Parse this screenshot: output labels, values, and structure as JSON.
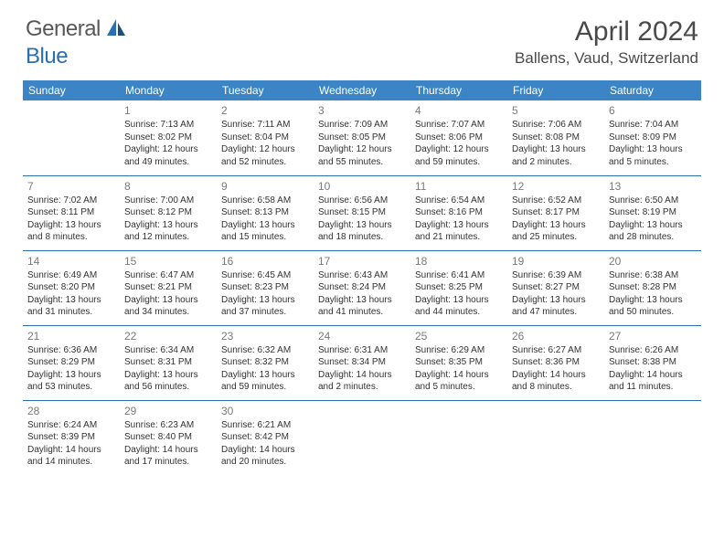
{
  "logo": {
    "part1": "General",
    "part2": "Blue"
  },
  "title": "April 2024",
  "location": "Ballens, Vaud, Switzerland",
  "dayHeaders": [
    "Sunday",
    "Monday",
    "Tuesday",
    "Wednesday",
    "Thursday",
    "Friday",
    "Saturday"
  ],
  "colors": {
    "headerBg": "#3b85c6",
    "headerText": "#ffffff",
    "border": "#2b6fb0",
    "text": "#333333",
    "dayNum": "#7a7a7a",
    "logoGray": "#585858",
    "logoBlue": "#2b6fb0"
  },
  "weeks": [
    [
      null,
      {
        "n": "1",
        "sr": "Sunrise: 7:13 AM",
        "ss": "Sunset: 8:02 PM",
        "d1": "Daylight: 12 hours",
        "d2": "and 49 minutes."
      },
      {
        "n": "2",
        "sr": "Sunrise: 7:11 AM",
        "ss": "Sunset: 8:04 PM",
        "d1": "Daylight: 12 hours",
        "d2": "and 52 minutes."
      },
      {
        "n": "3",
        "sr": "Sunrise: 7:09 AM",
        "ss": "Sunset: 8:05 PM",
        "d1": "Daylight: 12 hours",
        "d2": "and 55 minutes."
      },
      {
        "n": "4",
        "sr": "Sunrise: 7:07 AM",
        "ss": "Sunset: 8:06 PM",
        "d1": "Daylight: 12 hours",
        "d2": "and 59 minutes."
      },
      {
        "n": "5",
        "sr": "Sunrise: 7:06 AM",
        "ss": "Sunset: 8:08 PM",
        "d1": "Daylight: 13 hours",
        "d2": "and 2 minutes."
      },
      {
        "n": "6",
        "sr": "Sunrise: 7:04 AM",
        "ss": "Sunset: 8:09 PM",
        "d1": "Daylight: 13 hours",
        "d2": "and 5 minutes."
      }
    ],
    [
      {
        "n": "7",
        "sr": "Sunrise: 7:02 AM",
        "ss": "Sunset: 8:11 PM",
        "d1": "Daylight: 13 hours",
        "d2": "and 8 minutes."
      },
      {
        "n": "8",
        "sr": "Sunrise: 7:00 AM",
        "ss": "Sunset: 8:12 PM",
        "d1": "Daylight: 13 hours",
        "d2": "and 12 minutes."
      },
      {
        "n": "9",
        "sr": "Sunrise: 6:58 AM",
        "ss": "Sunset: 8:13 PM",
        "d1": "Daylight: 13 hours",
        "d2": "and 15 minutes."
      },
      {
        "n": "10",
        "sr": "Sunrise: 6:56 AM",
        "ss": "Sunset: 8:15 PM",
        "d1": "Daylight: 13 hours",
        "d2": "and 18 minutes."
      },
      {
        "n": "11",
        "sr": "Sunrise: 6:54 AM",
        "ss": "Sunset: 8:16 PM",
        "d1": "Daylight: 13 hours",
        "d2": "and 21 minutes."
      },
      {
        "n": "12",
        "sr": "Sunrise: 6:52 AM",
        "ss": "Sunset: 8:17 PM",
        "d1": "Daylight: 13 hours",
        "d2": "and 25 minutes."
      },
      {
        "n": "13",
        "sr": "Sunrise: 6:50 AM",
        "ss": "Sunset: 8:19 PM",
        "d1": "Daylight: 13 hours",
        "d2": "and 28 minutes."
      }
    ],
    [
      {
        "n": "14",
        "sr": "Sunrise: 6:49 AM",
        "ss": "Sunset: 8:20 PM",
        "d1": "Daylight: 13 hours",
        "d2": "and 31 minutes."
      },
      {
        "n": "15",
        "sr": "Sunrise: 6:47 AM",
        "ss": "Sunset: 8:21 PM",
        "d1": "Daylight: 13 hours",
        "d2": "and 34 minutes."
      },
      {
        "n": "16",
        "sr": "Sunrise: 6:45 AM",
        "ss": "Sunset: 8:23 PM",
        "d1": "Daylight: 13 hours",
        "d2": "and 37 minutes."
      },
      {
        "n": "17",
        "sr": "Sunrise: 6:43 AM",
        "ss": "Sunset: 8:24 PM",
        "d1": "Daylight: 13 hours",
        "d2": "and 41 minutes."
      },
      {
        "n": "18",
        "sr": "Sunrise: 6:41 AM",
        "ss": "Sunset: 8:25 PM",
        "d1": "Daylight: 13 hours",
        "d2": "and 44 minutes."
      },
      {
        "n": "19",
        "sr": "Sunrise: 6:39 AM",
        "ss": "Sunset: 8:27 PM",
        "d1": "Daylight: 13 hours",
        "d2": "and 47 minutes."
      },
      {
        "n": "20",
        "sr": "Sunrise: 6:38 AM",
        "ss": "Sunset: 8:28 PM",
        "d1": "Daylight: 13 hours",
        "d2": "and 50 minutes."
      }
    ],
    [
      {
        "n": "21",
        "sr": "Sunrise: 6:36 AM",
        "ss": "Sunset: 8:29 PM",
        "d1": "Daylight: 13 hours",
        "d2": "and 53 minutes."
      },
      {
        "n": "22",
        "sr": "Sunrise: 6:34 AM",
        "ss": "Sunset: 8:31 PM",
        "d1": "Daylight: 13 hours",
        "d2": "and 56 minutes."
      },
      {
        "n": "23",
        "sr": "Sunrise: 6:32 AM",
        "ss": "Sunset: 8:32 PM",
        "d1": "Daylight: 13 hours",
        "d2": "and 59 minutes."
      },
      {
        "n": "24",
        "sr": "Sunrise: 6:31 AM",
        "ss": "Sunset: 8:34 PM",
        "d1": "Daylight: 14 hours",
        "d2": "and 2 minutes."
      },
      {
        "n": "25",
        "sr": "Sunrise: 6:29 AM",
        "ss": "Sunset: 8:35 PM",
        "d1": "Daylight: 14 hours",
        "d2": "and 5 minutes."
      },
      {
        "n": "26",
        "sr": "Sunrise: 6:27 AM",
        "ss": "Sunset: 8:36 PM",
        "d1": "Daylight: 14 hours",
        "d2": "and 8 minutes."
      },
      {
        "n": "27",
        "sr": "Sunrise: 6:26 AM",
        "ss": "Sunset: 8:38 PM",
        "d1": "Daylight: 14 hours",
        "d2": "and 11 minutes."
      }
    ],
    [
      {
        "n": "28",
        "sr": "Sunrise: 6:24 AM",
        "ss": "Sunset: 8:39 PM",
        "d1": "Daylight: 14 hours",
        "d2": "and 14 minutes."
      },
      {
        "n": "29",
        "sr": "Sunrise: 6:23 AM",
        "ss": "Sunset: 8:40 PM",
        "d1": "Daylight: 14 hours",
        "d2": "and 17 minutes."
      },
      {
        "n": "30",
        "sr": "Sunrise: 6:21 AM",
        "ss": "Sunset: 8:42 PM",
        "d1": "Daylight: 14 hours",
        "d2": "and 20 minutes."
      },
      null,
      null,
      null,
      null
    ]
  ]
}
